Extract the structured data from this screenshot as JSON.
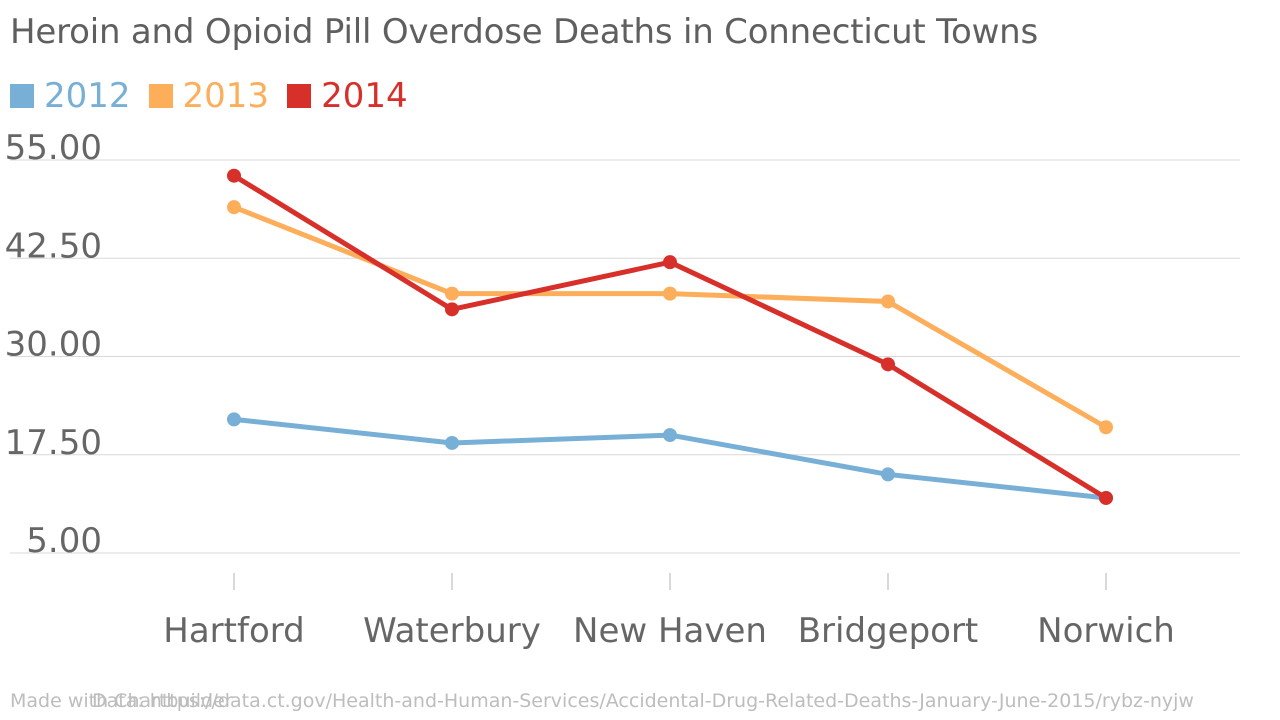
{
  "chart_data": {
    "type": "line",
    "title": "Heroin and Opioid Pill Overdose Deaths in Connecticut Towns",
    "categories": [
      "Hartford",
      "Waterbury",
      "New Haven",
      "Bridgeport",
      "Norwich"
    ],
    "series": [
      {
        "name": "2012",
        "color": "#78afd6",
        "values": [
          22,
          19,
          20,
          15,
          12
        ]
      },
      {
        "name": "2013",
        "color": "#fdae5b",
        "values": [
          49,
          38,
          38,
          37,
          21
        ]
      },
      {
        "name": "2014",
        "color": "#d7302a",
        "values": [
          53,
          36,
          42,
          29,
          12
        ]
      }
    ],
    "yticks": [
      "5.00",
      "17.50",
      "30.00",
      "42.50",
      "55.00"
    ],
    "ylim": [
      5,
      55
    ],
    "grid": true,
    "legend_position": "top-left"
  },
  "footer": {
    "made_with": "Made with Chartbuilder",
    "source": "Data: https://data.ct.gov/Health-and-Human-Services/Accidental-Drug-Related-Deaths-January-June-2015/rybz-nyjw"
  }
}
